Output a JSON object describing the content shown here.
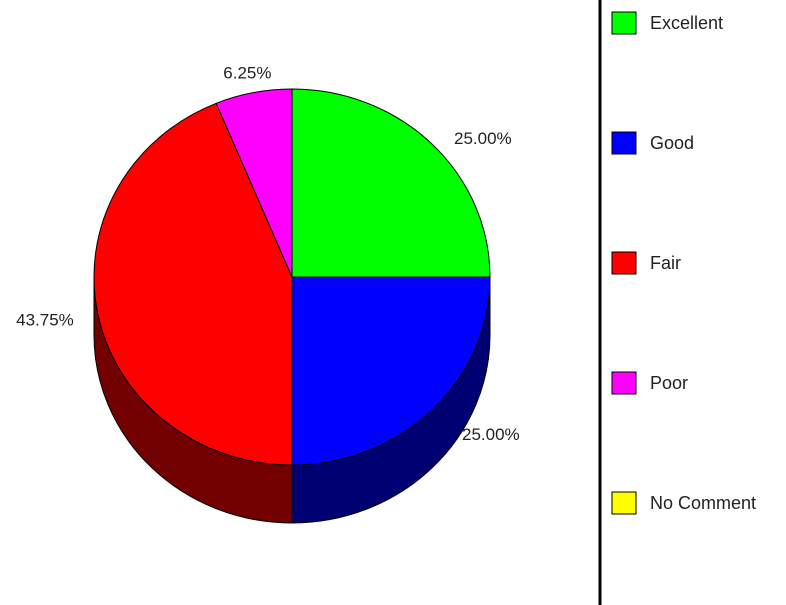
{
  "chart_data": {
    "type": "pie",
    "style": "3d-tilted",
    "legend_position": "right",
    "slices": [
      {
        "label": "Excellent",
        "value": 25.0,
        "value_text": "25.00%",
        "color": "#00ff00"
      },
      {
        "label": "Good",
        "value": 25.0,
        "value_text": "25.00%",
        "color": "#0000ff"
      },
      {
        "label": "Fair",
        "value": 43.75,
        "value_text": "43.75%",
        "color": "#ff0000"
      },
      {
        "label": "Poor",
        "value": 6.25,
        "value_text": "6.25%",
        "color": "#ff00ff"
      },
      {
        "label": "No Comment",
        "value": 0,
        "value_text": "",
        "color": "#ffff00"
      }
    ]
  }
}
